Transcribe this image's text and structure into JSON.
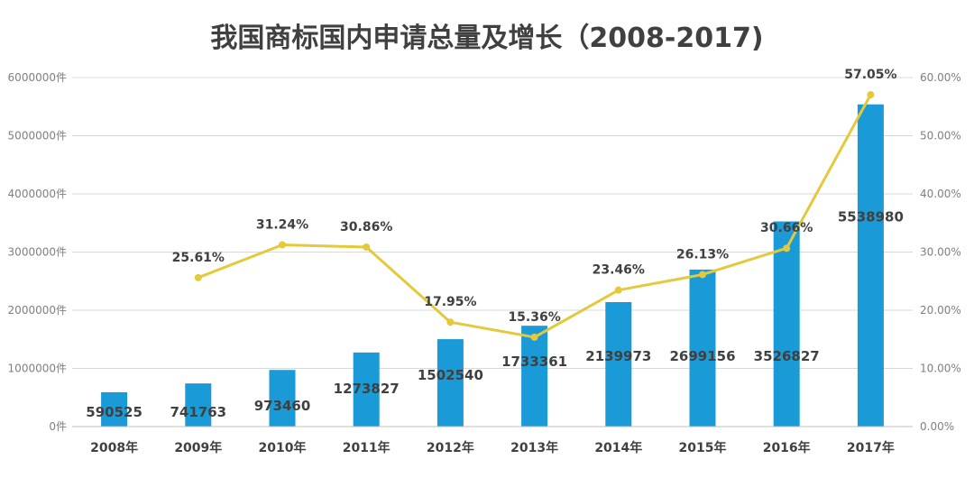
{
  "chart_data": {
    "type": "bar",
    "title": "我国商标国内申请总量及增长（2008-2017)",
    "categories": [
      "2008年",
      "2009年",
      "2010年",
      "2011年",
      "2012年",
      "2013年",
      "2014年",
      "2015年",
      "2016年",
      "2017年"
    ],
    "series": [
      {
        "type": "bar",
        "axis": "left",
        "values": [
          590525,
          741763,
          973460,
          1273827,
          1502540,
          1733361,
          2139973,
          2699156,
          3526827,
          5538980
        ],
        "labels": [
          "590525",
          "741763",
          "973460",
          "1273827",
          "1502540",
          "1733361",
          "2139973",
          "2699156",
          "3526827",
          "5538980"
        ],
        "color": "#1a9ad6"
      },
      {
        "type": "line",
        "axis": "right",
        "values": [
          null,
          25.61,
          31.24,
          30.86,
          17.95,
          15.36,
          23.46,
          26.13,
          30.66,
          57.05
        ],
        "labels": [
          "",
          "25.61%",
          "31.24%",
          "30.86%",
          "17.95%",
          "15.36%",
          "23.46%",
          "26.13%",
          "30.66%",
          "57.05%"
        ],
        "color": "#e3c93b"
      }
    ],
    "left_axis": {
      "ylim": [
        0,
        6000000
      ],
      "ticks": [
        "0件",
        "1000000件",
        "2000000件",
        "3000000件",
        "4000000件",
        "5000000件",
        "6000000件"
      ]
    },
    "right_axis": {
      "ylim": [
        0,
        60
      ],
      "ticks": [
        "0.00%",
        "10.00%",
        "20.00%",
        "30.00%",
        "40.00%",
        "50.00%",
        "60.00%"
      ]
    },
    "grid": true,
    "legend": "none"
  }
}
